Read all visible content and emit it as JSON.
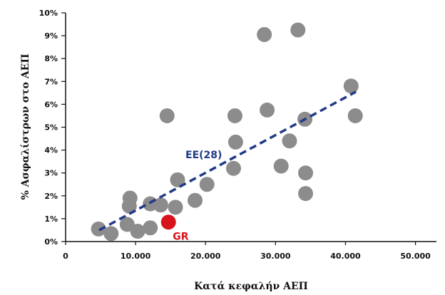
{
  "chart_data": {
    "type": "scatter",
    "xlabel": "Κατά κεφαλήν ΑΕΠ",
    "ylabel": "% Ασφαλίστρων στο ΑΕΠ",
    "xlim": [
      0,
      53000
    ],
    "ylim": [
      0,
      10
    ],
    "x_ticks": [
      0,
      10000,
      20000,
      30000,
      40000,
      50000
    ],
    "x_tick_labels": [
      "0",
      "10.000",
      "20.000",
      "30.000",
      "40.000",
      "50.000"
    ],
    "y_ticks": [
      0,
      1,
      2,
      3,
      4,
      5,
      6,
      7,
      8,
      9,
      10
    ],
    "y_tick_labels": [
      "0%",
      "1%",
      "2%",
      "3%",
      "4%",
      "5%",
      "6%",
      "7%",
      "8%",
      "9%",
      "10%"
    ],
    "grid": false,
    "colors": {
      "points": "#8c8c8c",
      "highlight": "#d7141c",
      "trend": "#213a87"
    },
    "points": [
      {
        "x": 4700,
        "y": 0.55
      },
      {
        "x": 6500,
        "y": 0.35
      },
      {
        "x": 8800,
        "y": 0.75
      },
      {
        "x": 9100,
        "y": 1.55
      },
      {
        "x": 9200,
        "y": 1.9
      },
      {
        "x": 10300,
        "y": 0.45
      },
      {
        "x": 12100,
        "y": 0.6
      },
      {
        "x": 12100,
        "y": 1.65
      },
      {
        "x": 13600,
        "y": 1.6
      },
      {
        "x": 14500,
        "y": 5.5
      },
      {
        "x": 15700,
        "y": 1.5
      },
      {
        "x": 16000,
        "y": 2.7
      },
      {
        "x": 18500,
        "y": 1.8
      },
      {
        "x": 20200,
        "y": 2.5
      },
      {
        "x": 24000,
        "y": 3.2
      },
      {
        "x": 24200,
        "y": 5.5
      },
      {
        "x": 24300,
        "y": 4.35
      },
      {
        "x": 28400,
        "y": 9.05
      },
      {
        "x": 28800,
        "y": 5.75
      },
      {
        "x": 30800,
        "y": 3.3
      },
      {
        "x": 32000,
        "y": 4.4
      },
      {
        "x": 33200,
        "y": 9.25
      },
      {
        "x": 34200,
        "y": 5.35
      },
      {
        "x": 34300,
        "y": 2.1
      },
      {
        "x": 34300,
        "y": 3.0
      },
      {
        "x": 40800,
        "y": 6.8
      },
      {
        "x": 41400,
        "y": 5.5
      }
    ],
    "highlight": {
      "label": "GR",
      "x": 14700,
      "y": 0.85
    },
    "trendline": {
      "label": "EE(28)",
      "x_start": 4800,
      "y_start": 0.5,
      "x_end": 41500,
      "y_end": 6.55
    }
  }
}
